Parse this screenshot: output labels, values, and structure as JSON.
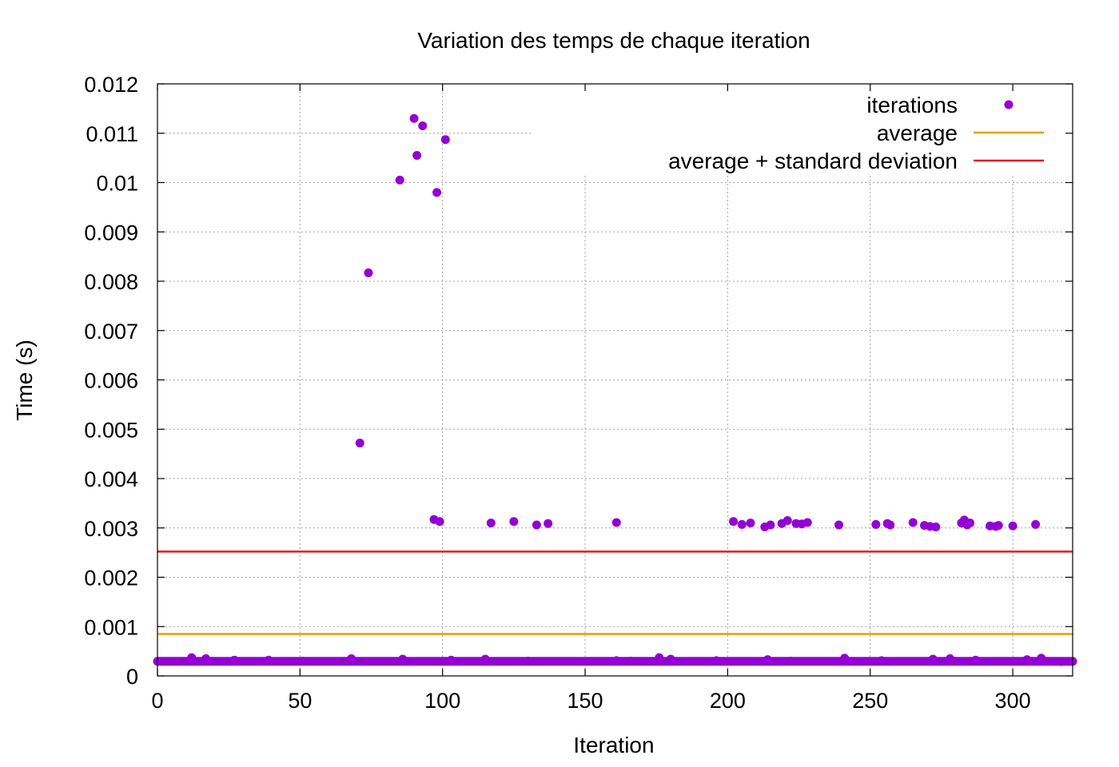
{
  "chart_data": {
    "type": "scatter",
    "title": "Variation des temps de chaque iteration",
    "xlabel": "Iteration",
    "ylabel": "Time (s)",
    "xlim": [
      0,
      321
    ],
    "ylim": [
      0,
      0.012
    ],
    "x_ticks": [
      {
        "value": 0,
        "label": "0"
      },
      {
        "value": 50,
        "label": "50"
      },
      {
        "value": 100,
        "label": "100"
      },
      {
        "value": 150,
        "label": "150"
      },
      {
        "value": 200,
        "label": "200"
      },
      {
        "value": 250,
        "label": "250"
      },
      {
        "value": 300,
        "label": "300"
      }
    ],
    "y_ticks": [
      {
        "value": 0,
        "label": "0"
      },
      {
        "value": 0.001,
        "label": "0.001"
      },
      {
        "value": 0.002,
        "label": "0.002"
      },
      {
        "value": 0.003,
        "label": "0.003"
      },
      {
        "value": 0.004,
        "label": "0.004"
      },
      {
        "value": 0.005,
        "label": "0.005"
      },
      {
        "value": 0.006,
        "label": "0.006"
      },
      {
        "value": 0.007,
        "label": "0.007"
      },
      {
        "value": 0.008,
        "label": "0.008"
      },
      {
        "value": 0.009,
        "label": "0.009"
      },
      {
        "value": 0.01,
        "label": "0.01"
      },
      {
        "value": 0.011,
        "label": "0.011"
      },
      {
        "value": 0.012,
        "label": "0.012"
      }
    ],
    "grid": true,
    "legend_position": "top-right",
    "baseline": {
      "x_start": 0,
      "x_end": 321,
      "y": 0.000295
    },
    "series": [
      {
        "name": "iterations",
        "type": "scatter",
        "color": "#9400d3",
        "points": [
          [
            12,
            0.00037
          ],
          [
            17,
            0.00035
          ],
          [
            27,
            0.00032
          ],
          [
            39,
            0.00032
          ],
          [
            51,
            0.0003
          ],
          [
            68,
            0.00035
          ],
          [
            86,
            0.00034
          ],
          [
            103,
            0.00032
          ],
          [
            115,
            0.00034
          ],
          [
            130,
            0.0003
          ],
          [
            161,
            0.00031
          ],
          [
            166,
            0.0003
          ],
          [
            176,
            0.00037
          ],
          [
            180,
            0.00034
          ],
          [
            196,
            0.00031
          ],
          [
            214,
            0.00033
          ],
          [
            222,
            0.0003
          ],
          [
            241,
            0.00036
          ],
          [
            254,
            0.00031
          ],
          [
            272,
            0.00034
          ],
          [
            278,
            0.00035
          ],
          [
            287,
            0.00032
          ],
          [
            305,
            0.00033
          ],
          [
            310,
            0.00036
          ],
          [
            317,
            0.00029
          ],
          [
            71,
            0.00472
          ],
          [
            74,
            0.00817
          ],
          [
            85,
            0.01005
          ],
          [
            90,
            0.0113
          ],
          [
            91,
            0.01055
          ],
          [
            93,
            0.01115
          ],
          [
            97,
            0.00317
          ],
          [
            98,
            0.0098
          ],
          [
            99,
            0.00313
          ],
          [
            101,
            0.01087
          ],
          [
            117,
            0.0031
          ],
          [
            125,
            0.00313
          ],
          [
            133,
            0.00306
          ],
          [
            137,
            0.00309
          ],
          [
            161,
            0.00311
          ],
          [
            202,
            0.00313
          ],
          [
            205,
            0.00307
          ],
          [
            208,
            0.0031
          ],
          [
            213,
            0.00302
          ],
          [
            215,
            0.00306
          ],
          [
            219,
            0.00309
          ],
          [
            221,
            0.00315
          ],
          [
            224,
            0.00309
          ],
          [
            226,
            0.00308
          ],
          [
            228,
            0.00311
          ],
          [
            239,
            0.00306
          ],
          [
            252,
            0.00307
          ],
          [
            256,
            0.00309
          ],
          [
            257,
            0.00306
          ],
          [
            265,
            0.00311
          ],
          [
            269,
            0.00305
          ],
          [
            271,
            0.00303
          ],
          [
            273,
            0.00302
          ],
          [
            282,
            0.0031
          ],
          [
            283,
            0.00316
          ],
          [
            284,
            0.00306
          ],
          [
            285,
            0.0031
          ],
          [
            292,
            0.00304
          ],
          [
            294,
            0.00303
          ],
          [
            295,
            0.00305
          ],
          [
            300,
            0.00304
          ],
          [
            308,
            0.00307
          ]
        ]
      },
      {
        "name": "average",
        "type": "hline",
        "color": "#e69f00",
        "y": 0.00085
      },
      {
        "name": "average + standard deviation",
        "type": "hline",
        "color": "#e41a1c",
        "y": 0.00252
      }
    ]
  }
}
